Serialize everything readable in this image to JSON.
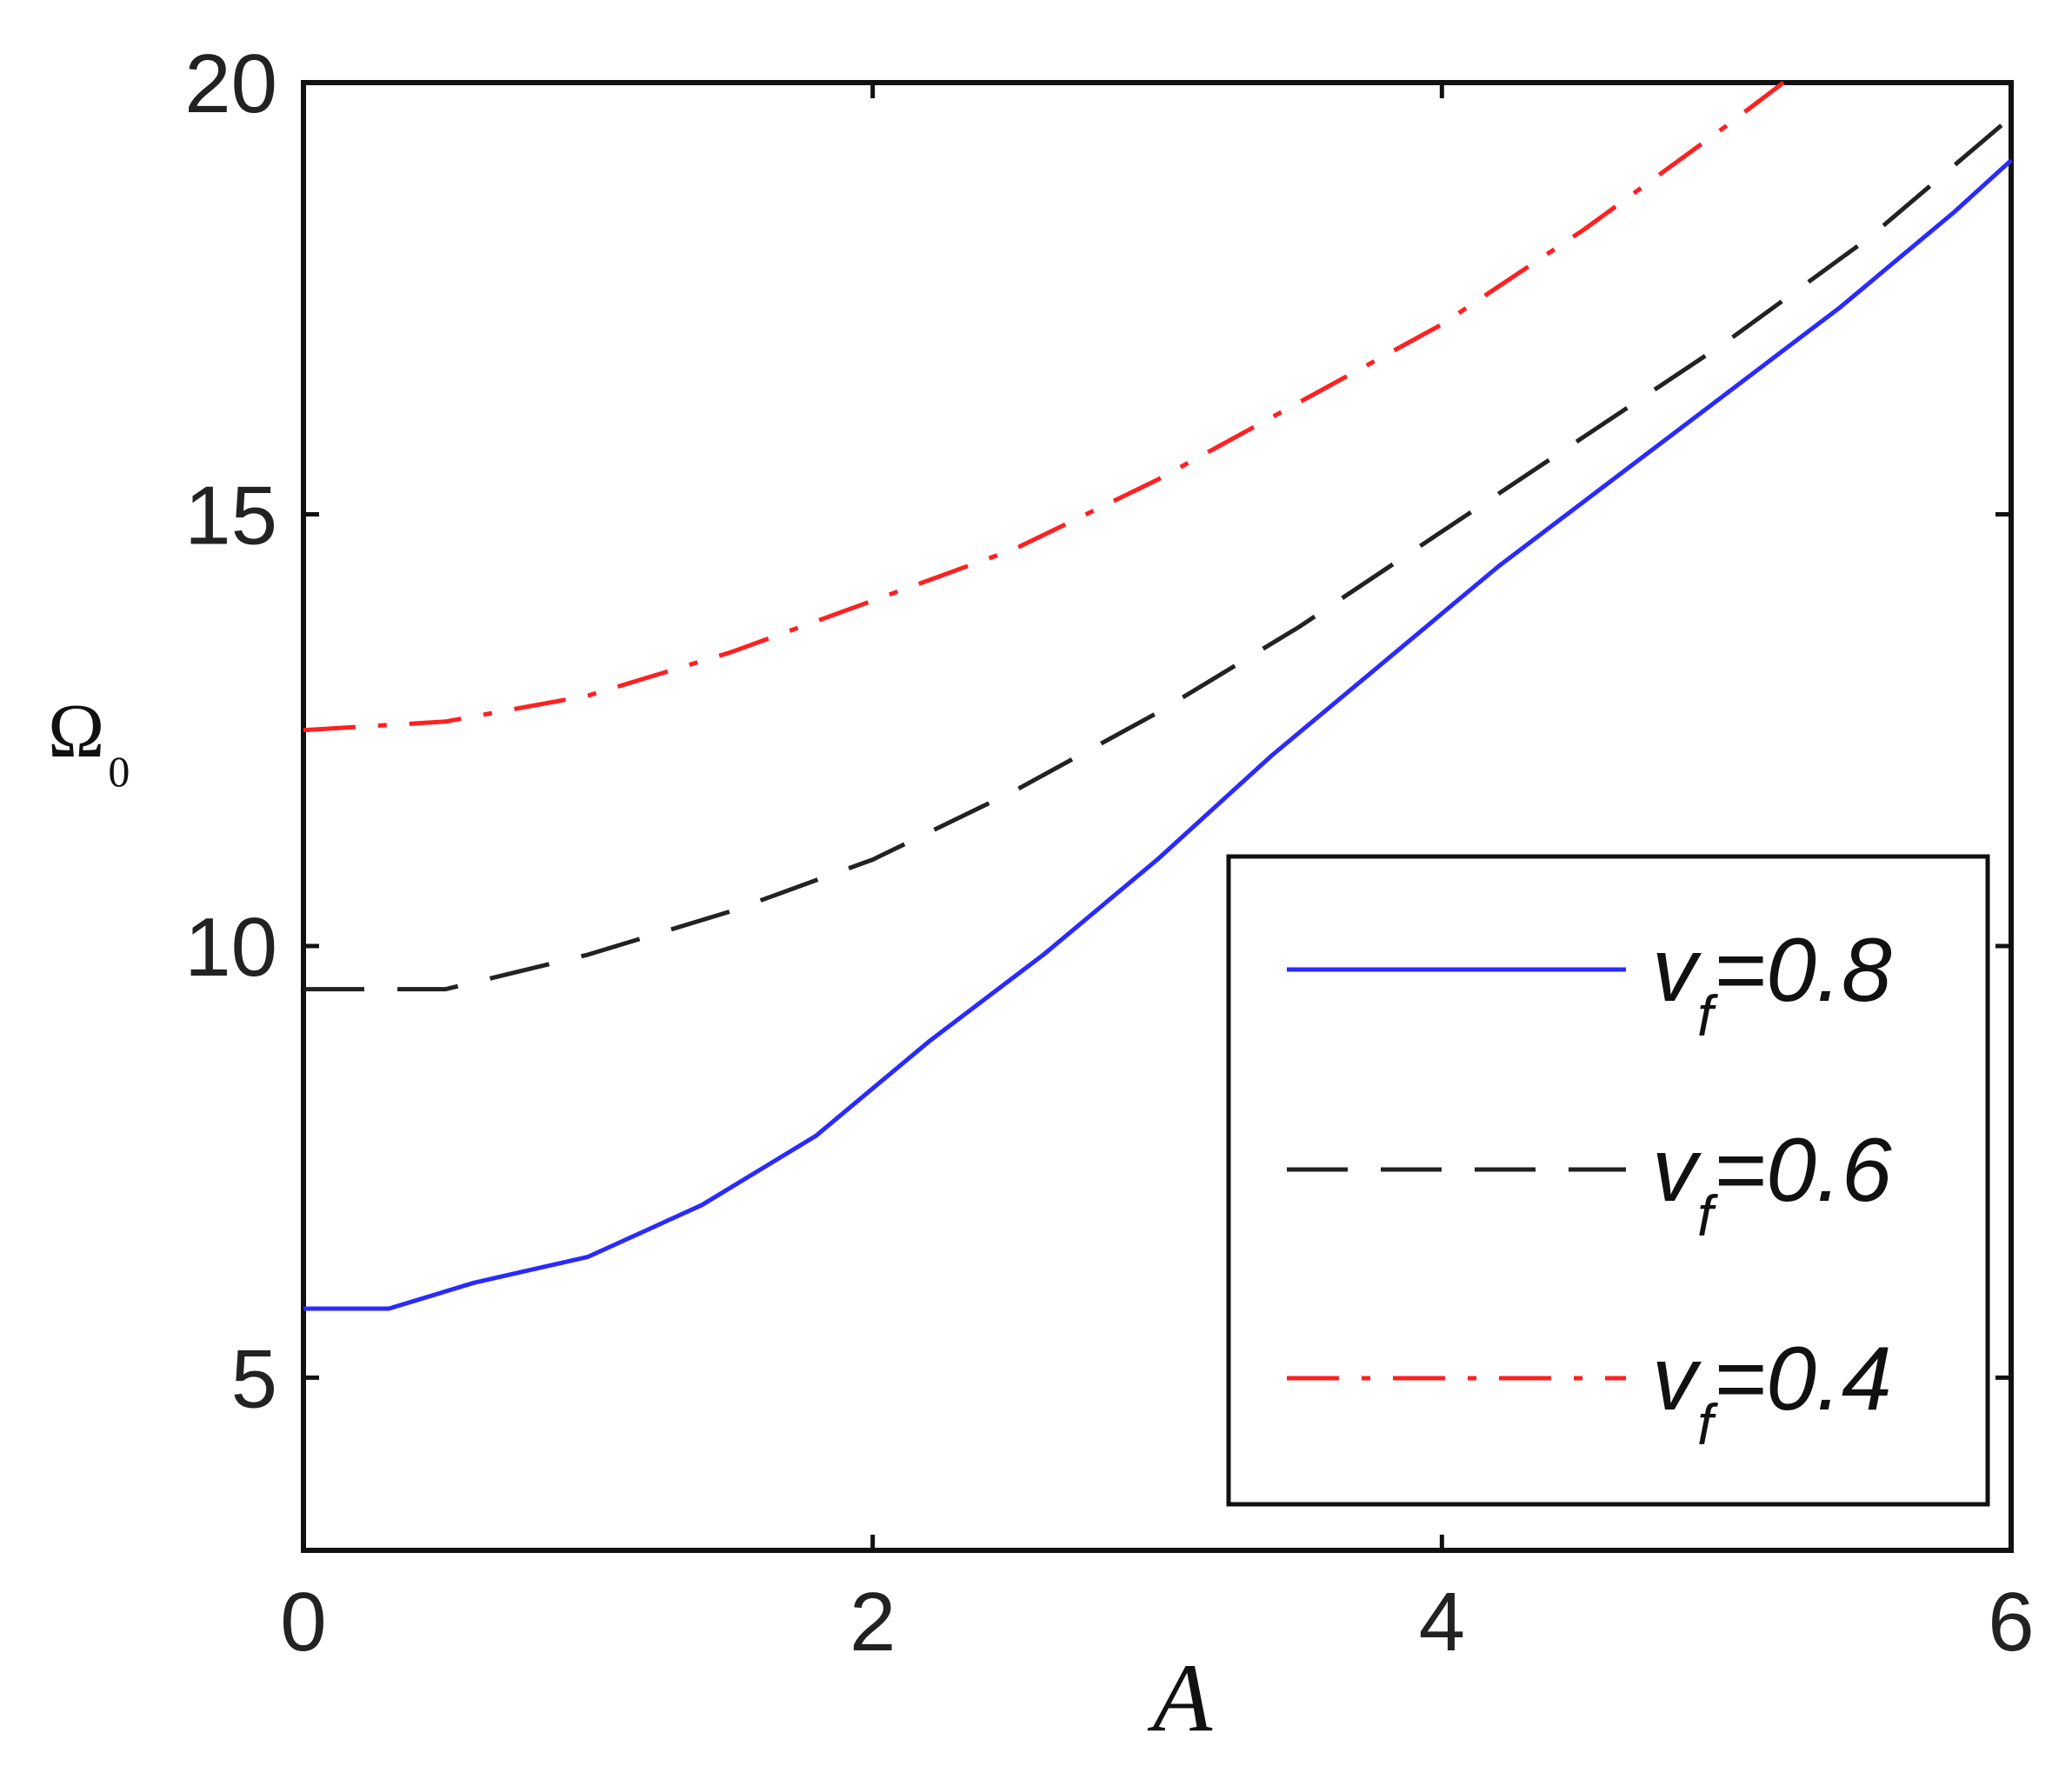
{
  "chart_data": {
    "type": "line",
    "xlabel": "A",
    "ylabel": {
      "main": "Ω",
      "sub": "0"
    },
    "xlim": [
      0,
      6
    ],
    "ylim": [
      3,
      20
    ],
    "xticks": [
      0,
      2,
      4,
      6
    ],
    "yticks": [
      5,
      10,
      15,
      20
    ],
    "grid": false,
    "legend_position": "bottom-right",
    "series": [
      {
        "label_main": "v",
        "label_sub": "f",
        "label_value": "=0.8",
        "color": "#2a2aff",
        "style": "solid",
        "x": [
          0,
          0.3,
          0.6,
          1.0,
          1.4,
          1.8,
          2.2,
          2.6,
          3.0,
          3.4,
          3.8,
          4.2,
          4.6,
          5.0,
          5.4,
          5.8,
          6.0
        ],
        "y": [
          5.8,
          5.8,
          6.1,
          6.4,
          7.0,
          7.8,
          8.9,
          9.9,
          11.0,
          12.2,
          13.3,
          14.4,
          15.4,
          16.4,
          17.4,
          18.5,
          19.1
        ]
      },
      {
        "label_main": "v",
        "label_sub": "f",
        "label_value": "=0.6",
        "color": "#222222",
        "style": "dashed",
        "x": [
          0,
          0.5,
          1.0,
          1.5,
          2.0,
          2.5,
          3.0,
          3.5,
          4.0,
          4.5,
          5.0,
          5.5,
          6.0
        ],
        "y": [
          9.5,
          9.5,
          9.9,
          10.4,
          11.0,
          11.8,
          12.7,
          13.7,
          14.8,
          15.9,
          17.0,
          18.2,
          19.6
        ]
      },
      {
        "label_main": "v",
        "label_sub": "f",
        "label_value": "=0.4",
        "color": "#ff2020",
        "style": "dashdot",
        "x": [
          0,
          0.5,
          1.0,
          1.5,
          2.0,
          2.5,
          3.0,
          3.5,
          4.0,
          4.5,
          5.0,
          5.2
        ],
        "y": [
          12.5,
          12.6,
          12.9,
          13.4,
          14.0,
          14.6,
          15.4,
          16.3,
          17.2,
          18.3,
          19.5,
          20.0
        ]
      }
    ]
  }
}
